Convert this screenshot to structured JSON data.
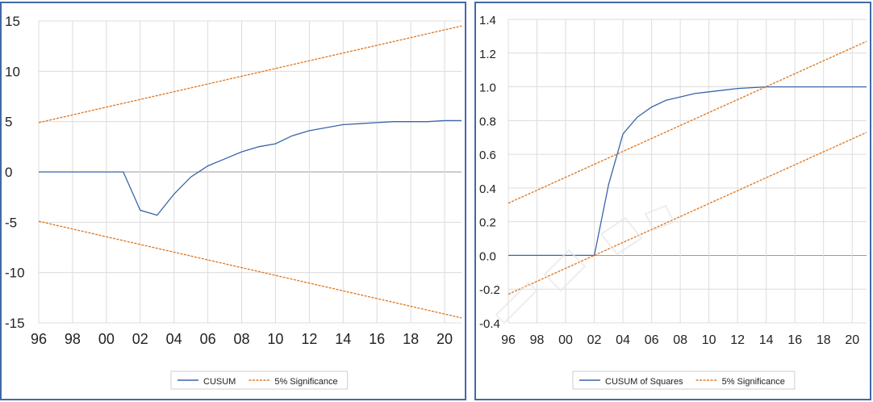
{
  "colors": {
    "cusum": "#3a65a8",
    "significance": "#e07b28",
    "grid": "#dcdcdc",
    "zero": "#9a9a9a",
    "border": "#3f6aa8"
  },
  "chart_data": [
    {
      "type": "line",
      "ylim": [
        -15,
        15
      ],
      "yticks": [
        15,
        10,
        5,
        0,
        -5,
        -10,
        -15
      ],
      "ytick_labels": [
        "15",
        "10",
        "5",
        "0",
        "-5",
        "-10",
        "-15"
      ],
      "xlim": [
        1996,
        2021
      ],
      "xticks": [
        1996,
        1998,
        2000,
        2002,
        2004,
        2006,
        2008,
        2010,
        2012,
        2014,
        2016,
        2018,
        2020
      ],
      "xtick_labels": [
        "96",
        "98",
        "00",
        "02",
        "04",
        "06",
        "08",
        "10",
        "12",
        "14",
        "16",
        "18",
        "20"
      ],
      "legend_position": "bottom-center",
      "grid": true,
      "series": [
        {
          "name": "CUSUM",
          "style": "solid",
          "x": [
            1996,
            1997,
            1998,
            1999,
            2000,
            2001,
            2002,
            2003,
            2004,
            2005,
            2006,
            2007,
            2008,
            2009,
            2010,
            2011,
            2012,
            2013,
            2014,
            2015,
            2016,
            2017,
            2018,
            2019,
            2020,
            2021
          ],
          "values": [
            0,
            0,
            0,
            0,
            0,
            0,
            -3.8,
            -4.3,
            -2.2,
            -0.5,
            0.6,
            1.3,
            2.0,
            2.5,
            2.8,
            3.6,
            4.1,
            4.4,
            4.7,
            4.8,
            4.9,
            5.0,
            5.0,
            5.0,
            5.1,
            5.1
          ]
        },
        {
          "name": "5% Significance",
          "style": "dashed",
          "x": [
            1996,
            2021
          ],
          "values": [
            4.9,
            14.5
          ]
        },
        {
          "name": "",
          "style": "dashed",
          "x": [
            1996,
            2021
          ],
          "values": [
            -4.9,
            -14.5
          ]
        }
      ]
    },
    {
      "type": "line",
      "ylim": [
        -0.4,
        1.4
      ],
      "yticks": [
        1.4,
        1.2,
        1.0,
        0.8,
        0.6,
        0.4,
        0.2,
        0.0,
        -0.2,
        -0.4
      ],
      "ytick_labels": [
        "1.4",
        "1.2",
        "1.0",
        "0.8",
        "0.6",
        "0.4",
        "0.2",
        "0.0",
        "-0.2",
        "-0.4"
      ],
      "xlim": [
        1996,
        2021
      ],
      "xticks": [
        1996,
        1998,
        2000,
        2002,
        2004,
        2006,
        2008,
        2010,
        2012,
        2014,
        2016,
        2018,
        2020
      ],
      "xtick_labels": [
        "96",
        "98",
        "00",
        "02",
        "04",
        "06",
        "08",
        "10",
        "12",
        "14",
        "16",
        "18",
        "20"
      ],
      "legend_position": "bottom-center",
      "grid": true,
      "series": [
        {
          "name": "CUSUM of Squares",
          "style": "solid",
          "x": [
            1996,
            2002,
            2003,
            2004,
            2005,
            2006,
            2007,
            2008,
            2009,
            2010,
            2011,
            2012,
            2013,
            2014,
            2015,
            2016,
            2017,
            2018,
            2019,
            2020,
            2021
          ],
          "values": [
            0,
            0,
            0.42,
            0.72,
            0.82,
            0.88,
            0.92,
            0.94,
            0.96,
            0.97,
            0.98,
            0.99,
            0.995,
            1.0,
            1.0,
            1.0,
            1.0,
            1.0,
            1.0,
            1.0,
            1.0
          ]
        },
        {
          "name": "5% Significance",
          "style": "dashed",
          "x": [
            1996,
            2021
          ],
          "values": [
            0.31,
            1.27
          ]
        },
        {
          "name": "",
          "style": "dashed",
          "x": [
            1996,
            2021
          ],
          "values": [
            -0.23,
            0.73
          ]
        }
      ]
    }
  ]
}
